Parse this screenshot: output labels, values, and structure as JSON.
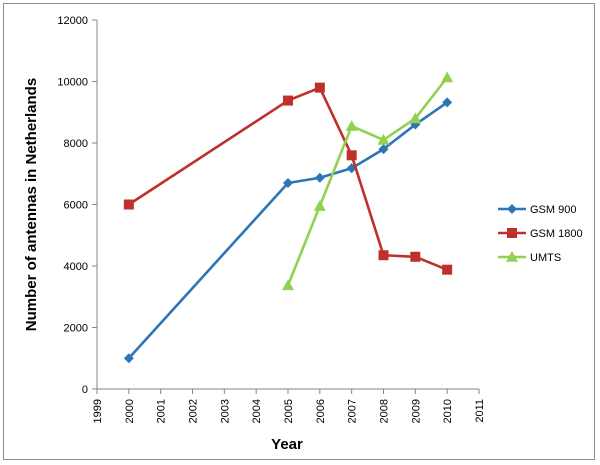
{
  "chart_data": {
    "type": "line",
    "xlabel": "Year",
    "ylabel": "Number of antennas in Netherlands",
    "xlim": [
      1999,
      2011
    ],
    "ylim": [
      0,
      12000
    ],
    "x_ticks": [
      1999,
      2000,
      2001,
      2002,
      2003,
      2004,
      2005,
      2006,
      2007,
      2008,
      2009,
      2010,
      2011
    ],
    "y_ticks": [
      0,
      2000,
      4000,
      6000,
      8000,
      10000,
      12000
    ],
    "grid": false,
    "legend_position": "right",
    "series": [
      {
        "name": "GSM 900",
        "color": "#2e75b6",
        "marker": "diamond",
        "x": [
          2000,
          2005,
          2006,
          2007,
          2008,
          2009,
          2010
        ],
        "y": [
          1000,
          6700,
          6870,
          7180,
          7800,
          8600,
          9320
        ]
      },
      {
        "name": "GSM 1800",
        "color": "#c0302b",
        "marker": "square",
        "x": [
          2000,
          2005,
          2006,
          2007,
          2008,
          2009,
          2010
        ],
        "y": [
          6000,
          9380,
          9800,
          7600,
          4350,
          4300,
          3880
        ]
      },
      {
        "name": "UMTS",
        "color": "#92d050",
        "marker": "triangle",
        "x": [
          2005,
          2006,
          2007,
          2008,
          2009,
          2010
        ],
        "y": [
          3370,
          5950,
          8550,
          8100,
          8800,
          10130
        ]
      }
    ]
  }
}
